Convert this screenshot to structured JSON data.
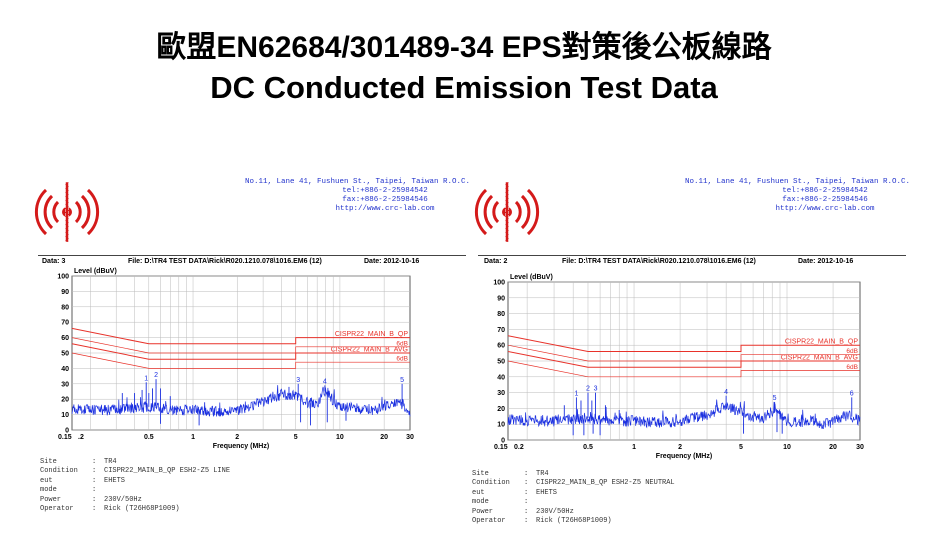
{
  "slide": {
    "title_line1": "歐盟EN62684/301489-34 EPS對策後公板線路",
    "title_line2": "DC Conducted Emission Test Data"
  },
  "colors": {
    "limit_red": "#e8322a",
    "trace_blue": "#1a2fe0",
    "text_blue": "#2233cc"
  },
  "panels": [
    {
      "address": [
        "No.11, Lane 41, Fushuen St.,  Taipei, Taiwan R.O.C.",
        "tel:+886-2-25984542",
        "fax:+886-2-25984546",
        "http://www.crc-lab.com"
      ],
      "data_label": "Data: 3",
      "file_label": "File: D:\\TR4 TEST DATA\\Rick\\R020.1210.078\\1016.EM6  (12)",
      "date_label": "Date: 2012-10-16",
      "info": [
        {
          "key": "Site",
          "value": "TR4"
        },
        {
          "key": "Condition",
          "value": "CISPR22_MAIN_B_QP ESH2-Z5 LINE"
        },
        {
          "key": "eut",
          "value": "EHETS"
        },
        {
          "key": "mode",
          "value": ""
        },
        {
          "key": "Power",
          "value": "230V/50Hz"
        },
        {
          "key": "Operator",
          "value": "Rick (T26H68P1009)"
        }
      ]
    },
    {
      "address": [
        "No.11, Lane 41, Fushuen St.,  Taipei, Taiwan R.O.C.",
        "tel:+886-2-25984542",
        "fax:+886-2-25984546",
        "http://www.crc-lab.com"
      ],
      "data_label": "Data: 2",
      "file_label": "File: D:\\TR4 TEST DATA\\Rick\\R020.1210.078\\1016.EM6  (12)",
      "date_label": "Date: 2012-10-16",
      "info": [
        {
          "key": "Site",
          "value": "TR4"
        },
        {
          "key": "Condition",
          "value": "CISPR22_MAIN_B_QP ESH2-Z5 NEUTRAL"
        },
        {
          "key": "eut",
          "value": "EHETS"
        },
        {
          "key": "mode",
          "value": ""
        },
        {
          "key": "Power",
          "value": "230V/50Hz"
        },
        {
          "key": "Operator",
          "value": "Rick (T26H68P1009)"
        }
      ]
    }
  ],
  "chart_data": [
    {
      "type": "line",
      "xscale": "log",
      "xlim": [
        0.15,
        30
      ],
      "ylim": [
        0,
        100
      ],
      "ylabel": "Level (dBuV)",
      "xlabel": "Frequency (MHz)",
      "yticks": [
        "0",
        "10",
        "20",
        "30",
        "40",
        "50",
        "60",
        "70",
        "80",
        "90",
        "100"
      ],
      "yticks_values": [
        0,
        10,
        20,
        30,
        40,
        50,
        60,
        70,
        80,
        90,
        100
      ],
      "xticks": [
        {
          "v": 0.15,
          "label": "0.15"
        },
        {
          "v": 0.2,
          "label": ".2"
        },
        {
          "v": 0.5,
          "label": "0.5"
        },
        {
          "v": 1,
          "label": "1"
        },
        {
          "v": 2,
          "label": "2"
        },
        {
          "v": 5,
          "label": "5"
        },
        {
          "v": 10,
          "label": "10"
        },
        {
          "v": 20,
          "label": "20"
        },
        {
          "v": 30,
          "label": "30"
        }
      ],
      "limits": [
        {
          "name": "CISPR22_MAIN_B_QP",
          "values": [
            [
              0.15,
              66
            ],
            [
              0.5,
              56
            ],
            [
              5,
              56
            ],
            [
              5,
              60
            ],
            [
              30,
              60
            ]
          ]
        },
        {
          "name": "6dB",
          "values": [
            [
              0.15,
              60
            ],
            [
              0.5,
              50
            ],
            [
              5,
              50
            ],
            [
              5,
              54
            ],
            [
              30,
              54
            ]
          ]
        },
        {
          "name": "CISPR22_MAIN_B_AVG",
          "values": [
            [
              0.15,
              56
            ],
            [
              0.5,
              46
            ],
            [
              5,
              46
            ],
            [
              5,
              50
            ],
            [
              30,
              50
            ]
          ]
        },
        {
          "name": "6dB",
          "values": [
            [
              0.15,
              50
            ],
            [
              0.5,
              40
            ],
            [
              5,
              40
            ],
            [
              5,
              44
            ],
            [
              30,
              44
            ]
          ]
        }
      ],
      "markers": [
        {
          "label": "1",
          "x": 0.48,
          "y": 31
        },
        {
          "label": "2",
          "x": 0.56,
          "y": 33
        },
        {
          "label": "3",
          "x": 5.2,
          "y": 30
        },
        {
          "label": "4",
          "x": 7.9,
          "y": 29
        },
        {
          "label": "5",
          "x": 26.5,
          "y": 30
        }
      ],
      "baseline": [
        [
          0.15,
          14
        ],
        [
          0.2,
          13
        ],
        [
          0.3,
          13
        ],
        [
          0.4,
          14
        ],
        [
          0.5,
          15
        ],
        [
          0.6,
          14
        ],
        [
          0.8,
          13
        ],
        [
          1,
          13
        ],
        [
          1.5,
          12
        ],
        [
          2,
          13
        ],
        [
          3,
          18
        ],
        [
          4,
          23
        ],
        [
          5,
          22
        ],
        [
          6,
          18
        ],
        [
          7,
          16
        ],
        [
          8,
          26
        ],
        [
          9,
          19
        ],
        [
          10,
          15
        ],
        [
          12,
          15
        ],
        [
          15,
          13
        ],
        [
          18,
          13
        ],
        [
          20,
          15
        ],
        [
          25,
          19
        ],
        [
          30,
          12
        ]
      ],
      "spikes": [
        [
          0.33,
          24
        ],
        [
          0.4,
          24
        ],
        [
          0.45,
          26
        ],
        [
          0.48,
          31
        ],
        [
          0.5,
          24
        ],
        [
          0.53,
          27
        ],
        [
          0.56,
          33
        ],
        [
          0.6,
          27
        ],
        [
          0.7,
          22
        ],
        [
          1.2,
          18
        ],
        [
          4.5,
          28
        ],
        [
          5.2,
          30
        ],
        [
          7.9,
          29
        ],
        [
          8.5,
          24
        ],
        [
          26.5,
          30
        ]
      ],
      "dips": [
        [
          0.6,
          4
        ],
        [
          1.1,
          3
        ],
        [
          5.4,
          5
        ],
        [
          6.3,
          3
        ],
        [
          8.2,
          5
        ],
        [
          11,
          6
        ]
      ]
    },
    {
      "type": "line",
      "xscale": "log",
      "xlim": [
        0.15,
        30
      ],
      "ylim": [
        0,
        100
      ],
      "ylabel": "Level (dBuV)",
      "xlabel": "Frequency (MHz)",
      "yticks": [
        "0",
        "10",
        "20",
        "30",
        "40",
        "50",
        "60",
        "70",
        "80",
        "90",
        "100"
      ],
      "yticks_values": [
        0,
        10,
        20,
        30,
        40,
        50,
        60,
        70,
        80,
        90,
        100
      ],
      "xticks": [
        {
          "v": 0.15,
          "label": "0.15"
        },
        {
          "v": 0.2,
          "label": "0.2"
        },
        {
          "v": 0.5,
          "label": "0.5"
        },
        {
          "v": 1,
          "label": "1"
        },
        {
          "v": 2,
          "label": "2"
        },
        {
          "v": 5,
          "label": "5"
        },
        {
          "v": 10,
          "label": "10"
        },
        {
          "v": 20,
          "label": "20"
        },
        {
          "v": 30,
          "label": "30"
        }
      ],
      "limits": [
        {
          "name": "CISPR22_MAIN_B_QP",
          "values": [
            [
              0.15,
              66
            ],
            [
              0.5,
              56
            ],
            [
              5,
              56
            ],
            [
              5,
              60
            ],
            [
              30,
              60
            ]
          ]
        },
        {
          "name": "6dB",
          "values": [
            [
              0.15,
              60
            ],
            [
              0.5,
              50
            ],
            [
              5,
              50
            ],
            [
              5,
              54
            ],
            [
              30,
              54
            ]
          ]
        },
        {
          "name": "CISPR22_MAIN_B_AVG",
          "values": [
            [
              0.15,
              56
            ],
            [
              0.5,
              46
            ],
            [
              5,
              46
            ],
            [
              5,
              50
            ],
            [
              30,
              50
            ]
          ]
        },
        {
          "name": "6dB",
          "values": [
            [
              0.15,
              50
            ],
            [
              0.5,
              40
            ],
            [
              5,
              40
            ],
            [
              5,
              44
            ],
            [
              30,
              44
            ]
          ]
        }
      ],
      "markers": [
        {
          "label": "1",
          "x": 0.42,
          "y": 27
        },
        {
          "label": "2",
          "x": 0.5,
          "y": 30
        },
        {
          "label": "3",
          "x": 0.56,
          "y": 30
        },
        {
          "label": "4",
          "x": 4.0,
          "y": 28
        },
        {
          "label": "5",
          "x": 8.3,
          "y": 24
        },
        {
          "label": "6",
          "x": 26.5,
          "y": 27
        }
      ],
      "baseline": [
        [
          0.15,
          13
        ],
        [
          0.2,
          12
        ],
        [
          0.3,
          12
        ],
        [
          0.4,
          13
        ],
        [
          0.5,
          14
        ],
        [
          0.6,
          13
        ],
        [
          0.8,
          12
        ],
        [
          1,
          12
        ],
        [
          1.5,
          11
        ],
        [
          2,
          12
        ],
        [
          3,
          16
        ],
        [
          4,
          21
        ],
        [
          5,
          18
        ],
        [
          6,
          15
        ],
        [
          7,
          14
        ],
        [
          8,
          18
        ],
        [
          9,
          16
        ],
        [
          10,
          12
        ],
        [
          12,
          11
        ],
        [
          15,
          12
        ],
        [
          18,
          10
        ],
        [
          20,
          12
        ],
        [
          25,
          16
        ],
        [
          30,
          12
        ]
      ],
      "spikes": [
        [
          0.35,
          22
        ],
        [
          0.42,
          27
        ],
        [
          0.45,
          25
        ],
        [
          0.5,
          30
        ],
        [
          0.53,
          25
        ],
        [
          0.56,
          30
        ],
        [
          0.65,
          22
        ],
        [
          0.8,
          19
        ],
        [
          3.5,
          22
        ],
        [
          4.0,
          28
        ],
        [
          8.3,
          24
        ],
        [
          26.5,
          27
        ]
      ],
      "dips": [
        [
          0.4,
          3
        ],
        [
          0.47,
          3
        ],
        [
          0.54,
          4
        ],
        [
          0.6,
          3
        ],
        [
          5.2,
          4
        ],
        [
          8.6,
          5
        ],
        [
          9.3,
          4
        ]
      ]
    }
  ]
}
